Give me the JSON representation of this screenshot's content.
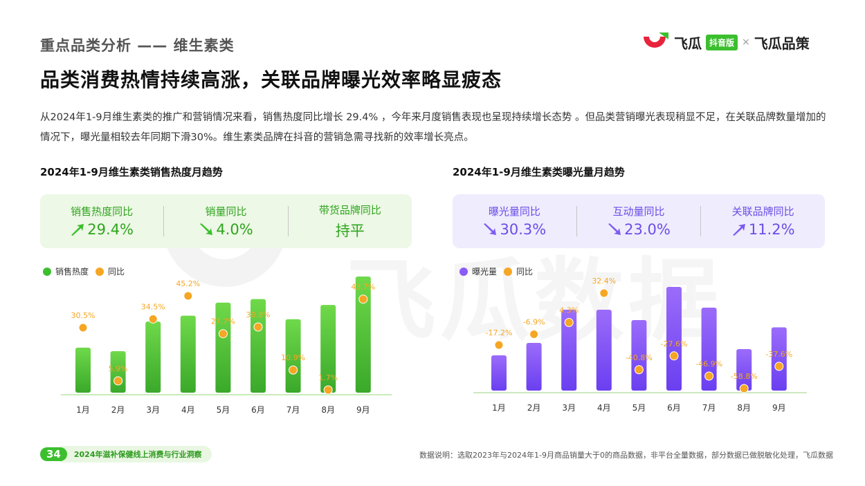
{
  "header": {
    "section_title": "重点品类分析 —— 维生素类",
    "main_title": "品类消费热情持续高涨，关联品牌曝光效率略显疲态",
    "intro": "从2024年1-9月维生素类的推广和营销情况来看，销售热度同比增长 29.4% ，今年来月度销售表现也呈现持续增长态势 。但品类营销曝光表现稍显不足，在关联品牌数量增加的情况下，曝光量相较去年同期下滑30%。维生素类品牌在抖音的营销急需寻找新的效率增长亮点。"
  },
  "logo": {
    "brand1": "飞瓜",
    "badge": "抖音版",
    "x": "×",
    "brand2": "飞瓜品策"
  },
  "watermark": "飞瓜数据",
  "left_section": {
    "heading": "2024年1-9月维生素类销售热度月趋势",
    "kpis": [
      {
        "label": "销售热度同比",
        "value": "29.4%",
        "arrow": "up"
      },
      {
        "label": "销量同比",
        "value": "4.0%",
        "arrow": "down"
      },
      {
        "label": "带货品牌同比",
        "value": "持平",
        "arrow": "none"
      }
    ]
  },
  "right_section": {
    "heading": "2024年1-9月维生素类曝光量月趋势",
    "kpis": [
      {
        "label": "曝光量同比",
        "value": "30.3%",
        "arrow": "down"
      },
      {
        "label": "互动量同比",
        "value": "23.0%",
        "arrow": "down"
      },
      {
        "label": "关联品牌同比",
        "value": "11.2%",
        "arrow": "up"
      }
    ]
  },
  "colors": {
    "green": "#3cbf2e",
    "purple": "#8b5cf6",
    "orange": "#f5a623"
  },
  "chart_data": [
    {
      "type": "bar",
      "categories": [
        "1月",
        "2月",
        "3月",
        "4月",
        "5月",
        "6月",
        "7月",
        "8月",
        "9月"
      ],
      "series": [
        {
          "name": "销售热度",
          "values": [
            38,
            35,
            60,
            65,
            76,
            79,
            62,
            74,
            98
          ]
        },
        {
          "name": "同比",
          "values": [
            30.5,
            5.9,
            34.5,
            45.2,
            27.7,
            30.8,
            10.9,
            1.7,
            43.7
          ],
          "labels": [
            "30.5%",
            "5.9%",
            "34.5%",
            "45.2%",
            "27.7%",
            "30.8%",
            "10.9%",
            "1.7%",
            "43.7%"
          ]
        }
      ],
      "legend": "top-left",
      "grid": false
    },
    {
      "type": "bar",
      "categories": [
        "1月",
        "2月",
        "3月",
        "4月",
        "5月",
        "6月",
        "7月",
        "8月",
        "9月"
      ],
      "series": [
        {
          "name": "曝光量",
          "values": [
            34,
            46,
            78,
            78,
            68,
            100,
            80,
            40,
            61
          ]
        },
        {
          "name": "同比",
          "values": [
            -17.2,
            -6.9,
            4.3,
            32.4,
            -40.8,
            -27.6,
            -46.9,
            -58.8,
            -37.6
          ],
          "labels": [
            "-17.2%",
            "-6.9%",
            "4.3%",
            "32.4%",
            "-40.8%",
            "-27.6%",
            "-46.9%",
            "-58.8%",
            "-37.6%"
          ]
        }
      ],
      "legend": "top-left",
      "grid": false
    }
  ],
  "footer": {
    "page": "34",
    "report": "2024年滋补保健线上消费与行业洞察",
    "note": "数据说明：选取2023年与2024年1-9月商品销量大于0的商品数据，非平台全量数据，部分数据已做脱敏化处理，飞瓜数据"
  }
}
